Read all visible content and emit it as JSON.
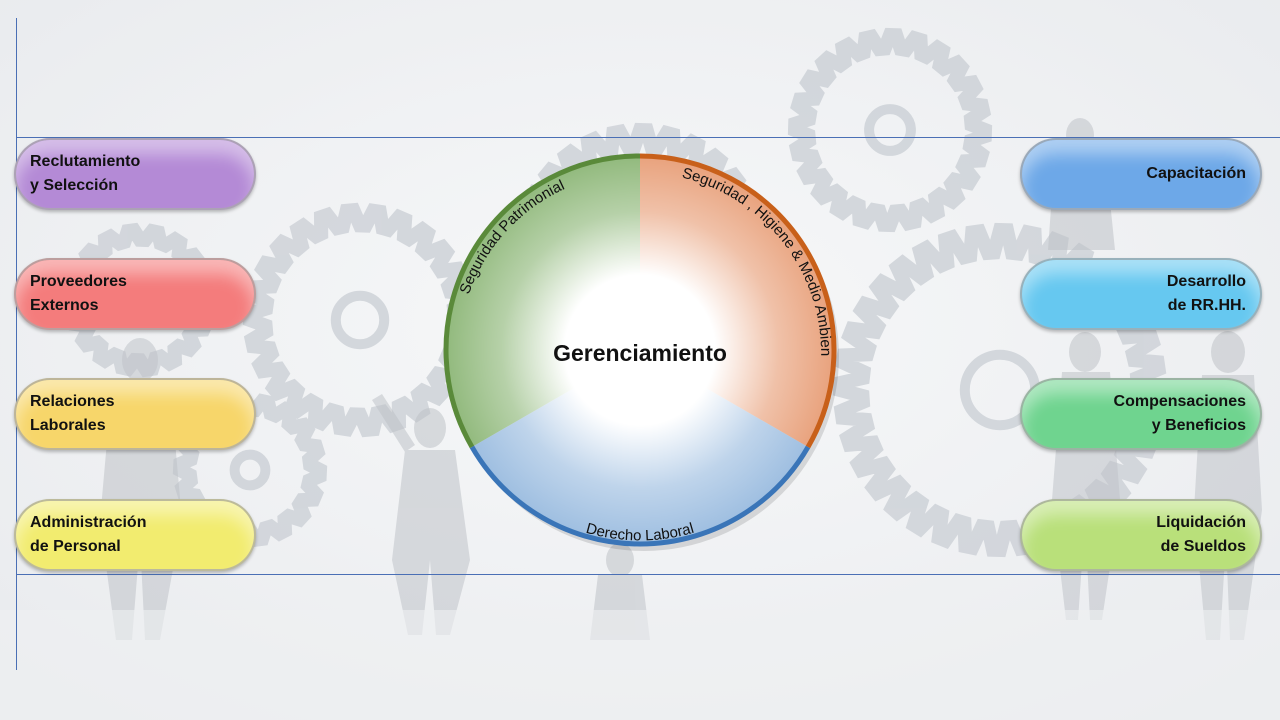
{
  "center": {
    "label": "Gerenciamiento"
  },
  "segments": [
    {
      "id": "seguridad-patrimonial",
      "label": "Seguridad Patrimonial",
      "color": "#5a8a3a",
      "fill": "#8fb87a"
    },
    {
      "id": "seguridad-higiene",
      "label": "Seguridad , Higiene & Medio Ambiente",
      "color": "#c8601a",
      "fill": "#e8a07a"
    },
    {
      "id": "derecho-laboral",
      "label": "Derecho Laboral",
      "color": "#3a75b8",
      "fill": "#9cbde0"
    }
  ],
  "left_pills": [
    {
      "lines": [
        "Reclutamiento",
        "y Selección"
      ],
      "color": "#b48ad6"
    },
    {
      "lines": [
        "Proveedores",
        "Externos"
      ],
      "color": "#f47c7c"
    },
    {
      "lines": [
        "Relaciones",
        "Laborales"
      ],
      "color": "#f7d66a"
    },
    {
      "lines": [
        "Administración",
        "de Personal"
      ],
      "color": "#f2ec6f"
    }
  ],
  "right_pills": [
    {
      "lines": [
        "Capacitación"
      ],
      "color": "#6da8e8"
    },
    {
      "lines": [
        "Desarrollo",
        "de RR.HH."
      ],
      "color": "#66c8f0"
    },
    {
      "lines": [
        "Compensaciones",
        "y Beneficios"
      ],
      "color": "#6fd48f"
    },
    {
      "lines": [
        "Liquidación",
        "de Sueldos"
      ],
      "color": "#b9e07a"
    }
  ],
  "background": {
    "image": "gears-and-business-people"
  }
}
